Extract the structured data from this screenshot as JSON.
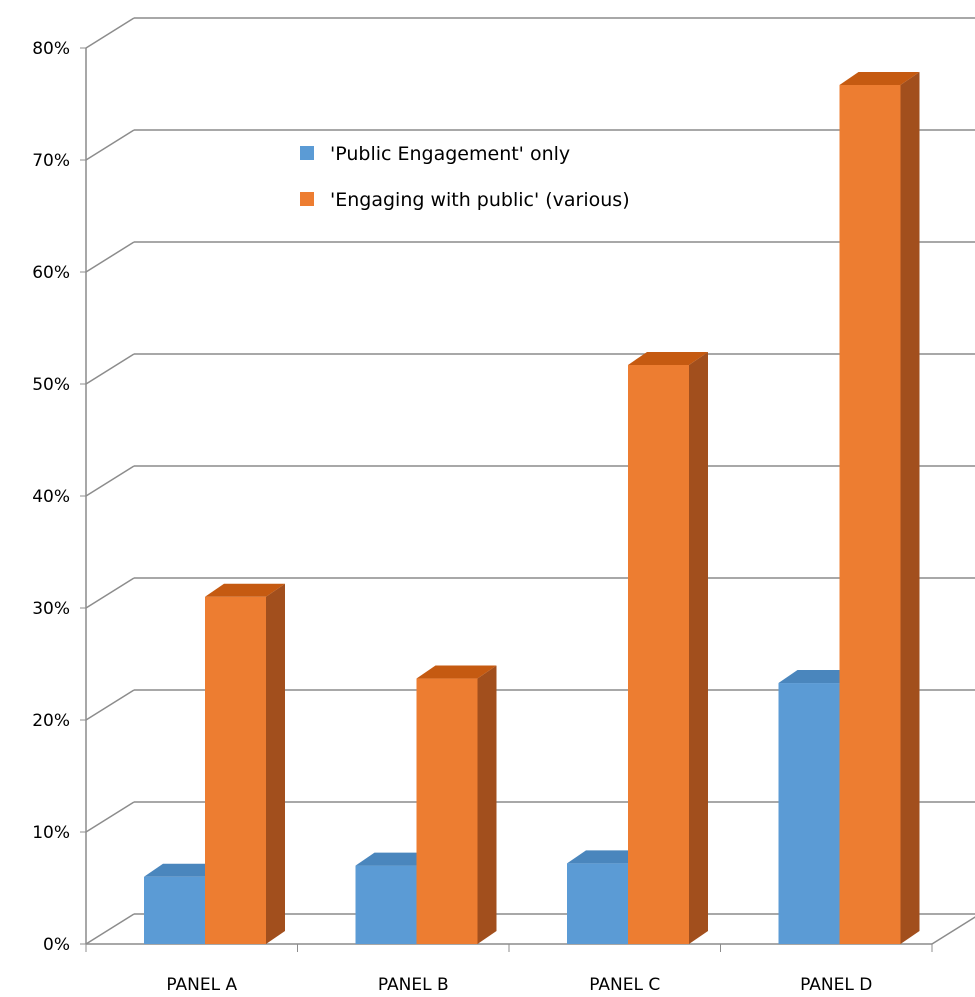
{
  "chart_data": {
    "type": "bar",
    "title": "",
    "xlabel": "",
    "ylabel": "",
    "categories": [
      "PANEL A",
      "PANEL B",
      "PANEL C",
      "PANEL D"
    ],
    "series": [
      {
        "name": "'Public Engagement' only",
        "values": [
          6,
          7,
          7.2,
          23.3
        ],
        "color": "#5b9bd5",
        "side_color": "#4178a8",
        "top_color": "#4a86bd"
      },
      {
        "name": "'Engaging with public' (various)",
        "values": [
          31,
          23.7,
          51.7,
          76.7
        ],
        "color": "#ed7d31",
        "side_color": "#a24f1d",
        "top_color": "#c55a11"
      }
    ],
    "ylim": [
      0,
      80
    ],
    "yticks": [
      "0%",
      "10%",
      "20%",
      "30%",
      "40%",
      "50%",
      "60%",
      "70%",
      "80%"
    ],
    "grid": true,
    "legend_position": "top-center",
    "style": "3d-clustered-column"
  }
}
